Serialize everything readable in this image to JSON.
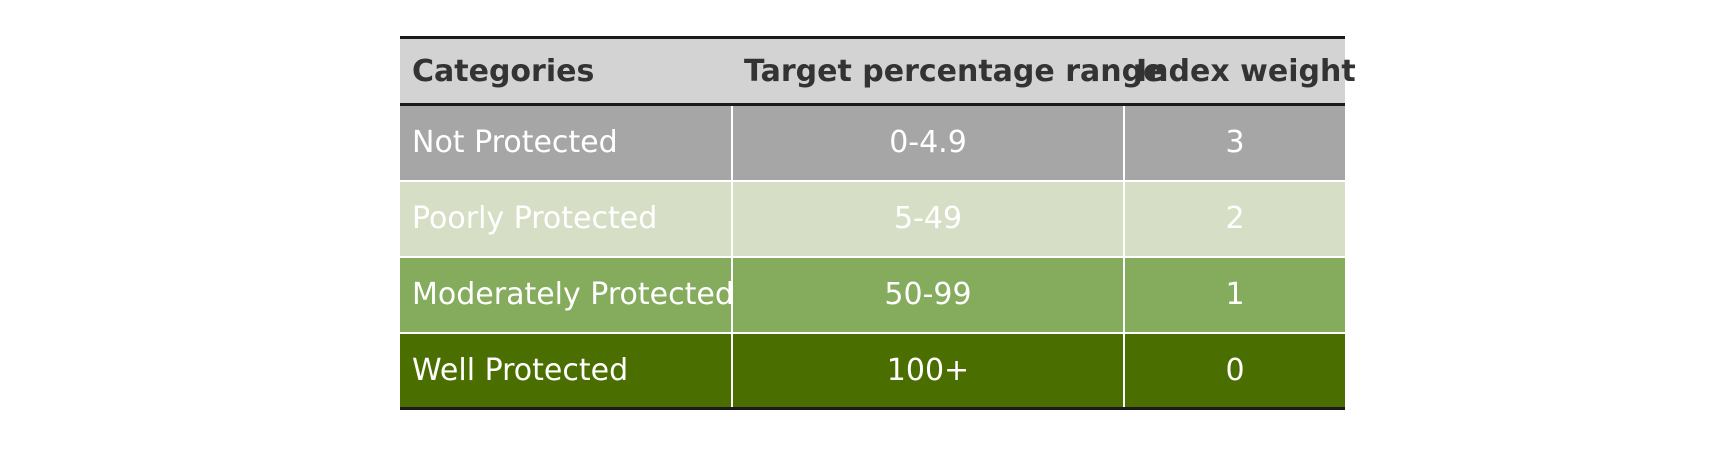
{
  "table": {
    "headers": {
      "category": "Categories",
      "range": "Target percentage range",
      "weight": "Index weight"
    },
    "rows": [
      {
        "category": "Not Protected",
        "range": "0-4.9",
        "weight": "3",
        "bg": "#a6a6a6"
      },
      {
        "category": "Poorly Protected",
        "range": "5-49",
        "weight": "2",
        "bg": "#d6dfc6"
      },
      {
        "category": "Moderately Protected",
        "range": "50-99",
        "weight": "1",
        "bg": "#85ab5d"
      },
      {
        "category": "Well Protected",
        "range": "100+",
        "weight": "0",
        "bg": "#4a6e00"
      }
    ]
  }
}
